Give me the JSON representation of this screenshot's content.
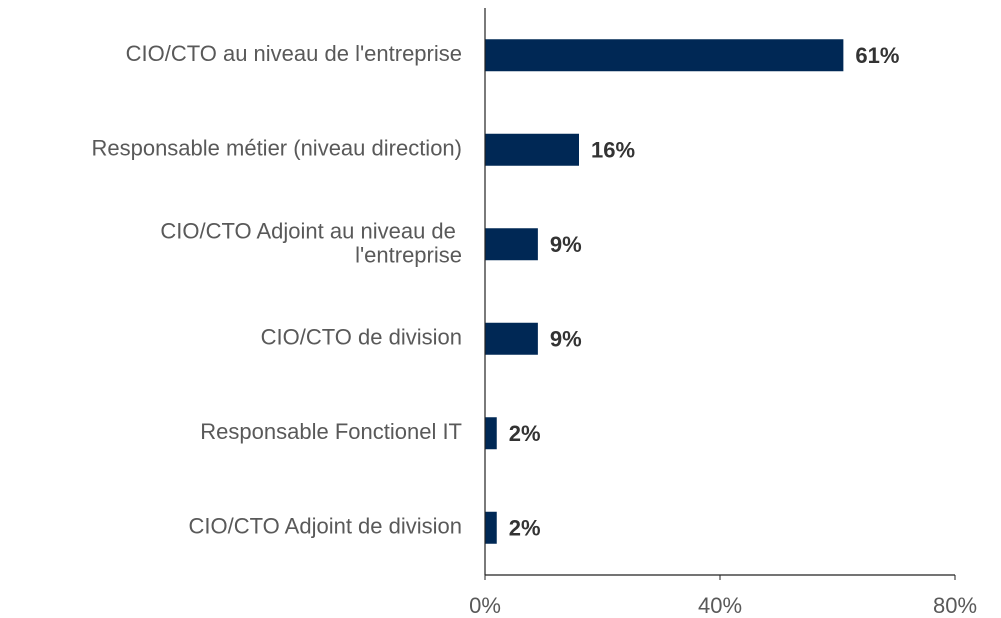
{
  "chart_data": {
    "type": "hbar",
    "categories": [
      "CIO/CTO au niveau de l'entreprise",
      "Responsable métier (niveau direction)",
      "CIO/CTO Adjoint au niveau de l'entreprise",
      "CIO/CTO de division",
      "Responsable Fonctionel IT",
      "CIO/CTO Adjoint de division"
    ],
    "values": [
      61,
      16,
      9,
      9,
      2,
      2
    ],
    "value_labels": [
      "61%",
      "16%",
      "9%",
      "9%",
      "2%",
      "2%"
    ],
    "color": "#002855",
    "xlim": [
      0,
      80
    ],
    "xticks": [
      {
        "value": 0,
        "label": "0%"
      },
      {
        "value": 40,
        "label": "40%"
      },
      {
        "value": 80,
        "label": "80%"
      }
    ],
    "grid": false
  }
}
